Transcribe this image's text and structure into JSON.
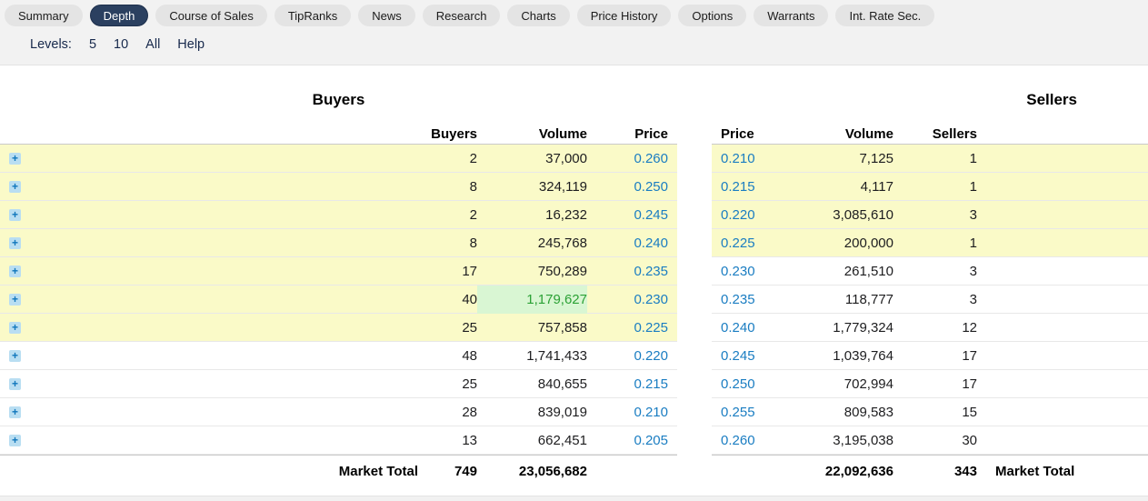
{
  "tabs": [
    {
      "label": "Summary",
      "active": false
    },
    {
      "label": "Depth",
      "active": true
    },
    {
      "label": "Course of Sales",
      "active": false
    },
    {
      "label": "TipRanks",
      "active": false
    },
    {
      "label": "News",
      "active": false
    },
    {
      "label": "Research",
      "active": false
    },
    {
      "label": "Charts",
      "active": false
    },
    {
      "label": "Price History",
      "active": false
    },
    {
      "label": "Options",
      "active": false
    },
    {
      "label": "Warrants",
      "active": false
    },
    {
      "label": "Int. Rate Sec.",
      "active": false
    }
  ],
  "levels_bar": {
    "label": "Levels:",
    "options": [
      "5",
      "10",
      "All",
      "Help"
    ]
  },
  "buyers": {
    "title": "Buyers",
    "columns": {
      "count": "Buyers",
      "volume": "Volume",
      "price": "Price"
    },
    "rows": [
      {
        "count": "2",
        "volume": "37,000",
        "price": "0.260",
        "highlight": true,
        "flash": false
      },
      {
        "count": "8",
        "volume": "324,119",
        "price": "0.250",
        "highlight": true,
        "flash": false
      },
      {
        "count": "2",
        "volume": "16,232",
        "price": "0.245",
        "highlight": true,
        "flash": false
      },
      {
        "count": "8",
        "volume": "245,768",
        "price": "0.240",
        "highlight": true,
        "flash": false
      },
      {
        "count": "17",
        "volume": "750,289",
        "price": "0.235",
        "highlight": true,
        "flash": false
      },
      {
        "count": "40",
        "volume": "1,179,627",
        "price": "0.230",
        "highlight": true,
        "flash": true
      },
      {
        "count": "25",
        "volume": "757,858",
        "price": "0.225",
        "highlight": true,
        "flash": false
      },
      {
        "count": "48",
        "volume": "1,741,433",
        "price": "0.220",
        "highlight": false,
        "flash": false
      },
      {
        "count": "25",
        "volume": "840,655",
        "price": "0.215",
        "highlight": false,
        "flash": false
      },
      {
        "count": "28",
        "volume": "839,019",
        "price": "0.210",
        "highlight": false,
        "flash": false
      },
      {
        "count": "13",
        "volume": "662,451",
        "price": "0.205",
        "highlight": false,
        "flash": false
      }
    ],
    "total": {
      "label": "Market Total",
      "count": "749",
      "volume": "23,056,682"
    }
  },
  "sellers": {
    "title": "Sellers",
    "columns": {
      "price": "Price",
      "volume": "Volume",
      "count": "Sellers"
    },
    "rows": [
      {
        "price": "0.210",
        "volume": "7,125",
        "count": "1",
        "highlight": true
      },
      {
        "price": "0.215",
        "volume": "4,117",
        "count": "1",
        "highlight": true
      },
      {
        "price": "0.220",
        "volume": "3,085,610",
        "count": "3",
        "highlight": true
      },
      {
        "price": "0.225",
        "volume": "200,000",
        "count": "1",
        "highlight": true
      },
      {
        "price": "0.230",
        "volume": "261,510",
        "count": "3",
        "highlight": false
      },
      {
        "price": "0.235",
        "volume": "118,777",
        "count": "3",
        "highlight": false
      },
      {
        "price": "0.240",
        "volume": "1,779,324",
        "count": "12",
        "highlight": false
      },
      {
        "price": "0.245",
        "volume": "1,039,764",
        "count": "17",
        "highlight": false
      },
      {
        "price": "0.250",
        "volume": "702,994",
        "count": "17",
        "highlight": false
      },
      {
        "price": "0.255",
        "volume": "809,583",
        "count": "15",
        "highlight": false
      },
      {
        "price": "0.260",
        "volume": "3,195,038",
        "count": "30",
        "highlight": false
      }
    ],
    "total": {
      "volume": "22,092,636",
      "count": "343",
      "label": "Market Total"
    }
  },
  "icons": {
    "expand_row": "plus-icon"
  },
  "colors": {
    "link_blue": "#1a7dc2",
    "highlight_row": "#fafac8",
    "flash_cell_bg": "#d9f6d3",
    "flash_cell_text": "#2ba135",
    "active_tab_bg": "#2b4060",
    "topbar_bg": "#f2f2f2"
  }
}
